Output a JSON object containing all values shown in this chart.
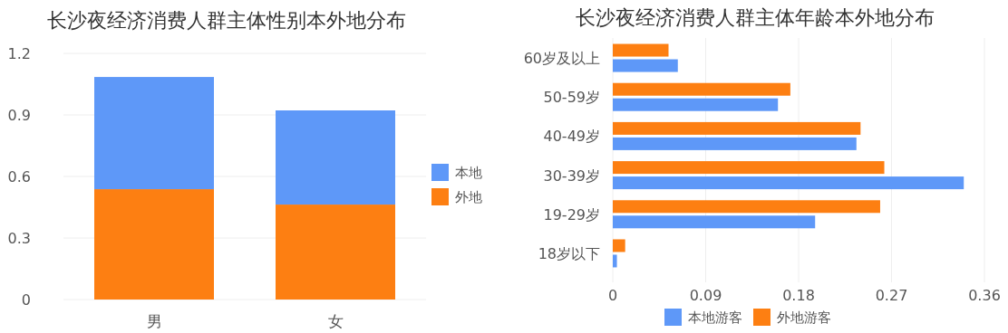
{
  "chart_data": [
    {
      "type": "bar",
      "title": "长沙夜经济消费人群主体性别本外地分布",
      "categories": [
        "男",
        "女"
      ],
      "stacked": true,
      "series": [
        {
          "name": "外地",
          "color": "#fd7f12",
          "values": [
            0.538,
            0.463
          ]
        },
        {
          "name": "本地",
          "color": "#5e98f8",
          "values": [
            0.547,
            0.459
          ]
        }
      ],
      "ylim": [
        0,
        1.2
      ],
      "yticks": [
        0,
        0.3,
        0.6,
        0.9,
        1.2
      ],
      "grid": "y",
      "legend": "right"
    },
    {
      "type": "bar",
      "title": "长沙夜经济消费人群主体年龄本外地分布",
      "orientation": "horizontal",
      "categories": [
        "60岁及以上",
        "50-59岁",
        "40-49岁",
        "30-39岁",
        "19-29岁",
        "18岁以下"
      ],
      "series": [
        {
          "name": "本地游客",
          "color": "#5e98f8",
          "values": [
            0.063,
            0.16,
            0.236,
            0.34,
            0.196,
            0.004
          ]
        },
        {
          "name": "外地游客",
          "color": "#fd7f12",
          "values": [
            0.054,
            0.172,
            0.24,
            0.263,
            0.259,
            0.012
          ]
        }
      ],
      "xlim": [
        0,
        0.36
      ],
      "xticks": [
        0,
        0.09,
        0.18,
        0.27,
        0.36
      ],
      "grid": "x",
      "legend": "bottom"
    }
  ]
}
